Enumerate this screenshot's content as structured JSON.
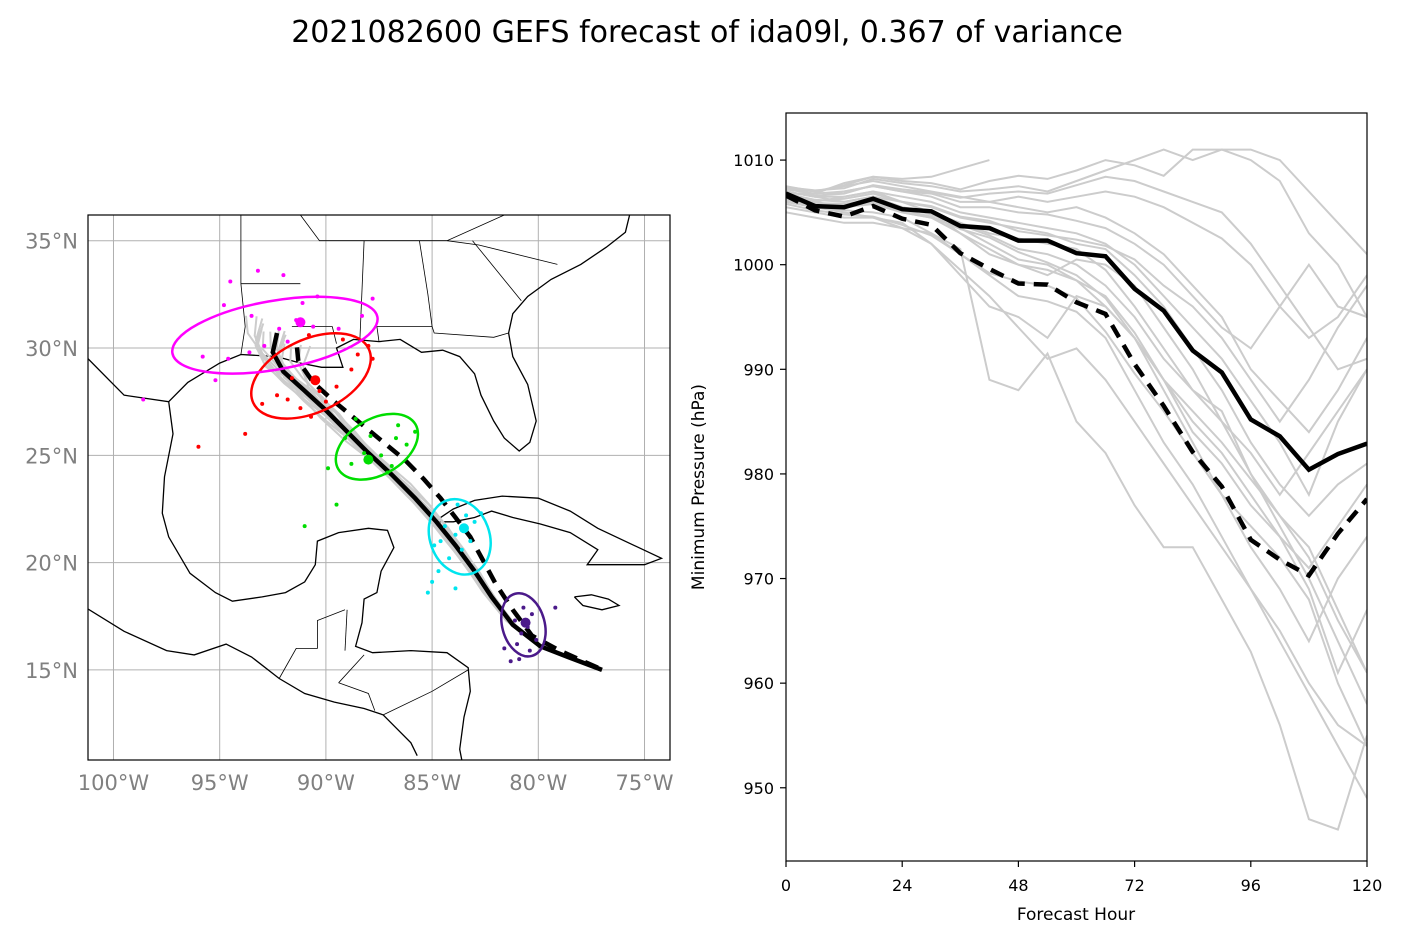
{
  "figure": {
    "title": "2021082600 GEFS forecast of ida09l, 0.367 of variance"
  },
  "colors": {
    "ensemble_member": "#cccccc",
    "mean_track": "#000000",
    "ellipse_24h": "#4b1a8a",
    "ellipse_48h": "#00e5ee",
    "ellipse_72h": "#00dd00",
    "ellipse_96h": "#ff0000",
    "ellipse_120h": "#ff00ff",
    "coastline": "#000000",
    "grid": "#b0b0b0"
  },
  "chart_data": [
    {
      "type": "scatter",
      "panel": "track-map",
      "projection": "PlateCarree",
      "xlim": [
        -101.2,
        -73.8
      ],
      "ylim": [
        10.8,
        36.2
      ],
      "xticks": [
        -100,
        -95,
        -90,
        -85,
        -80,
        -75
      ],
      "yticks": [
        15,
        20,
        25,
        30,
        35
      ],
      "xtick_labels": [
        "100°W",
        "95°W",
        "90°W",
        "85°W",
        "80°W",
        "75°W"
      ],
      "ytick_labels": [
        "15°N",
        "20°N",
        "25°N",
        "30°N",
        "35°N"
      ],
      "grid": true,
      "mean_track": {
        "lon": [
          -77.0,
          -78.6,
          -79.9,
          -81.2,
          -82.2,
          -83.0,
          -83.9,
          -84.8,
          -85.8,
          -86.9,
          -88.1,
          -89.1,
          -90.0,
          -91.0,
          -92.0,
          -92.5,
          -92.3
        ],
        "lat": [
          15.0,
          15.6,
          16.1,
          17.1,
          18.4,
          19.6,
          20.8,
          21.9,
          23.0,
          24.1,
          25.2,
          26.2,
          27.1,
          28.0,
          28.9,
          29.8,
          30.7
        ]
      },
      "alt_track": {
        "lon": [
          -77.2,
          -79.0,
          -80.3,
          -81.2,
          -82.0,
          -82.6,
          -83.2,
          -83.9,
          -84.6,
          -85.4,
          -86.3,
          -87.4,
          -88.5,
          -89.6,
          -90.6,
          -91.3,
          -91.4
        ],
        "lat": [
          15.1,
          15.9,
          16.6,
          17.8,
          19.0,
          20.1,
          21.2,
          22.1,
          23.0,
          23.9,
          24.8,
          25.7,
          26.6,
          27.5,
          28.4,
          29.4,
          30.4
        ]
      },
      "ellipses": [
        {
          "name": "24h",
          "lon": -80.7,
          "lat": 17.1,
          "rx": 1.0,
          "ry": 1.5,
          "angle": -15
        },
        {
          "name": "48h",
          "lon": -83.7,
          "lat": 21.2,
          "rx": 1.4,
          "ry": 1.8,
          "angle": -20
        },
        {
          "name": "72h",
          "lon": -87.6,
          "lat": 25.4,
          "rx": 2.1,
          "ry": 1.3,
          "angle": -30
        },
        {
          "name": "96h",
          "lon": -90.7,
          "lat": 28.7,
          "rx": 3.0,
          "ry": 1.7,
          "angle": -25
        },
        {
          "name": "120h",
          "lon": -92.4,
          "lat": 30.6,
          "rx": 4.9,
          "ry": 1.6,
          "angle": -10
        }
      ],
      "centers": [
        {
          "name": "24h",
          "lon": -80.6,
          "lat": 17.2
        },
        {
          "name": "48h",
          "lon": -83.5,
          "lat": 21.6
        },
        {
          "name": "72h",
          "lon": -88.0,
          "lat": 24.8
        },
        {
          "name": "96h",
          "lon": -90.5,
          "lat": 28.5
        },
        {
          "name": "120h",
          "lon": -91.2,
          "lat": 31.2
        }
      ],
      "members_24h": [
        [
          -81.3,
          15.4
        ],
        [
          -80.9,
          15.5
        ],
        [
          -80.4,
          15.9
        ],
        [
          -81.6,
          16.0
        ],
        [
          -80.1,
          16.4
        ],
        [
          -80.8,
          16.7
        ],
        [
          -81.1,
          17.3
        ],
        [
          -80.3,
          17.6
        ],
        [
          -80.7,
          17.9
        ],
        [
          -79.2,
          17.9
        ],
        [
          -81.0,
          16.2
        ],
        [
          -80.5,
          17.0
        ]
      ],
      "members_48h": [
        [
          -85.2,
          18.6
        ],
        [
          -85.0,
          19.1
        ],
        [
          -84.7,
          19.6
        ],
        [
          -83.9,
          18.8
        ],
        [
          -84.2,
          20.2
        ],
        [
          -83.6,
          20.6
        ],
        [
          -84.9,
          20.8
        ],
        [
          -83.2,
          21.0
        ],
        [
          -83.9,
          21.3
        ],
        [
          -84.4,
          21.7
        ],
        [
          -83.4,
          22.2
        ],
        [
          -83.8,
          22.7
        ],
        [
          -83.0,
          21.9
        ],
        [
          -82.7,
          22.3
        ],
        [
          -84.6,
          21.0
        ]
      ],
      "members_72h": [
        [
          -91.0,
          21.7
        ],
        [
          -89.5,
          22.7
        ],
        [
          -89.9,
          24.4
        ],
        [
          -88.8,
          24.6
        ],
        [
          -89.1,
          25.8
        ],
        [
          -88.2,
          25.1
        ],
        [
          -87.9,
          25.9
        ],
        [
          -87.4,
          25.0
        ],
        [
          -86.9,
          24.5
        ],
        [
          -86.7,
          25.8
        ],
        [
          -86.2,
          25.5
        ],
        [
          -85.8,
          26.1
        ],
        [
          -86.6,
          26.4
        ],
        [
          -88.6,
          26.7
        ],
        [
          -87.1,
          24.2
        ]
      ],
      "members_96h": [
        [
          -96.0,
          25.4
        ],
        [
          -93.8,
          26.0
        ],
        [
          -93.0,
          27.4
        ],
        [
          -92.3,
          27.8
        ],
        [
          -91.8,
          27.6
        ],
        [
          -91.2,
          27.2
        ],
        [
          -90.7,
          26.8
        ],
        [
          -90.0,
          27.5
        ],
        [
          -89.5,
          28.2
        ],
        [
          -88.8,
          29.0
        ],
        [
          -88.5,
          29.7
        ],
        [
          -88.0,
          30.1
        ],
        [
          -89.2,
          30.4
        ],
        [
          -90.8,
          30.6
        ],
        [
          -91.6,
          28.6
        ],
        [
          -90.3,
          28.0
        ],
        [
          -87.8,
          29.5
        ]
      ],
      "members_120h": [
        [
          -98.6,
          27.6
        ],
        [
          -95.2,
          28.5
        ],
        [
          -94.6,
          29.5
        ],
        [
          -95.8,
          29.6
        ],
        [
          -93.6,
          29.8
        ],
        [
          -92.9,
          30.1
        ],
        [
          -92.2,
          30.9
        ],
        [
          -91.4,
          31.3
        ],
        [
          -90.6,
          31.0
        ],
        [
          -91.1,
          32.1
        ],
        [
          -92.0,
          33.4
        ],
        [
          -93.2,
          33.6
        ],
        [
          -94.5,
          33.1
        ],
        [
          -94.8,
          32.0
        ],
        [
          -93.5,
          31.5
        ],
        [
          -90.4,
          32.4
        ],
        [
          -89.4,
          30.9
        ],
        [
          -88.3,
          31.5
        ],
        [
          -87.8,
          32.3
        ],
        [
          -91.8,
          30.3
        ]
      ]
    },
    {
      "type": "line",
      "panel": "pressure",
      "xlabel": "Forecast Hour",
      "ylabel": "Minimum Pressure (hPa)",
      "xlim": [
        0,
        120
      ],
      "ylim": [
        943,
        1014.5
      ],
      "xticks": [
        0,
        24,
        48,
        72,
        96,
        120
      ],
      "yticks": [
        950,
        960,
        970,
        980,
        990,
        1000,
        1010
      ],
      "grid": false,
      "mean": {
        "x": [
          0,
          6,
          12,
          18,
          24,
          30,
          36,
          42,
          48,
          54,
          60,
          66,
          72,
          78,
          84,
          90,
          96,
          102,
          108,
          114,
          120
        ],
        "y": [
          1006.8,
          1005.6,
          1005.5,
          1006.3,
          1005.3,
          1005.1,
          1003.7,
          1003.5,
          1002.3,
          1002.3,
          1001.1,
          1000.8,
          997.7,
          995.6,
          991.8,
          989.7,
          985.2,
          983.6,
          980.4,
          981.9,
          982.9
        ]
      },
      "alt": {
        "x": [
          0,
          6,
          12,
          18,
          24,
          30,
          36,
          42,
          48,
          54,
          60,
          66,
          72,
          78,
          84,
          90,
          96,
          102,
          108,
          114,
          120
        ],
        "y": [
          1006.6,
          1005.2,
          1004.6,
          1005.6,
          1004.4,
          1003.8,
          1001.1,
          999.6,
          998.2,
          998.1,
          996.4,
          995.3,
          990.5,
          986.5,
          982.1,
          978.8,
          973.7,
          971.8,
          970.3,
          974.3,
          977.6
        ]
      },
      "members": [
        [
          1006.0,
          1005.5,
          1005.2,
          1005.0,
          1004.5,
          1003.0,
          1001.0,
          999.0,
          997.0,
          996.5,
          995.5,
          993.0,
          988.0,
          983.0,
          979.0,
          974.0,
          969.0,
          964.0,
          959.0,
          954.0,
          949.0
        ],
        [
          1007.0,
          1006.5,
          1006.0,
          1006.5,
          1006.0,
          1005.5,
          1004.5,
          1004.0,
          1003.5,
          1003.0,
          1002.0,
          1001.5,
          999.0,
          996.0,
          992.0,
          988.0,
          983.0,
          979.0,
          976.0,
          979.0,
          981.0
        ],
        [
          1005.5,
          1005.0,
          1004.5,
          1004.5,
          1003.5,
          1002.0,
          999.5,
          997.0,
          994.0,
          991.0,
          992.0,
          989.0,
          985.0,
          981.0,
          977.0,
          973.0,
          969.0,
          965.0,
          960.0,
          956.0,
          954.0
        ],
        [
          1007.5,
          1007.0,
          1007.5,
          1008.0,
          1007.5,
          1007.0,
          1006.5,
          1006.0,
          1006.5,
          1006.0,
          1006.5,
          1007.0,
          1006.5,
          1005.5,
          1004.0,
          1002.5,
          1000.0,
          996.0,
          993.0,
          995.0,
          999.0
        ],
        [
          1006.5,
          1006.0,
          1006.5,
          1007.0,
          1006.0,
          1005.0,
          1003.0,
          1001.0,
          1000.0,
          999.0,
          1000.5,
          1000.0,
          998.0,
          994.0,
          990.0,
          985.0,
          980.0,
          976.0,
          972.0,
          966.0,
          961.0
        ],
        [
          1005.0,
          1004.5,
          1004.0,
          1004.0,
          1003.5,
          1003.0,
          1001.5,
          989.0,
          988.0,
          991.5,
          985.0,
          982.0,
          977.0,
          973.0,
          973.0,
          968.0,
          963.0,
          956.0,
          947.0,
          946.0,
          955.0
        ],
        [
          1006.0,
          1005.5,
          1005.0,
          1004.5,
          1004.0,
          1002.0,
          999.0,
          996.0,
          995.0,
          993.0,
          997.0,
          996.0,
          993.0,
          988.0,
          983.0,
          978.0,
          975.0,
          972.0,
          968.0,
          960.0,
          954.0
        ],
        [
          1007.0,
          1006.5,
          1006.5,
          1007.0,
          1006.5,
          1006.0,
          1005.0,
          1004.5,
          1004.0,
          1003.5,
          1003.0,
          1002.0,
          1000.0,
          997.0,
          994.0,
          991.0,
          987.0,
          983.0,
          978.0,
          985.0,
          990.0
        ],
        [
          1006.8,
          1006.2,
          1006.0,
          1006.5,
          1005.5,
          1005.0,
          1004.0,
          1003.0,
          1002.5,
          1002.0,
          1001.5,
          999.5,
          996.0,
          992.0,
          988.0,
          986.0,
          980.0,
          975.0,
          970.0,
          964.0,
          958.0
        ],
        [
          1006.0,
          1005.8,
          1005.5,
          1005.8,
          1005.0,
          1004.5,
          1003.5,
          1002.0,
          1000.5,
          1000.0,
          998.5,
          996.0,
          993.0,
          989.0,
          984.0,
          981.0,
          977.0,
          974.0,
          969.0,
          961.0,
          967.0
        ],
        [
          1007.2,
          1006.8,
          1007.0,
          1007.5,
          1007.0,
          1006.8,
          1006.0,
          1006.0,
          1005.5,
          1005.0,
          1005.5,
          1004.5,
          1003.0,
          1001.0,
          998.0,
          995.0,
          990.0,
          987.0,
          984.0,
          988.0,
          993.0
        ],
        [
          1006.3,
          1005.9,
          1005.8,
          1006.2,
          1005.5,
          1004.8,
          1003.8,
          1002.8,
          1001.5,
          1001.0,
          1000.0,
          998.0,
          995.0,
          991.0,
          988.0,
          985.0,
          982.0,
          978.0,
          982.0,
          986.0,
          990.0
        ],
        [
          1006.5,
          1006.0,
          1005.5,
          1006.0,
          1005.0,
          1004.5,
          1003.0,
          1001.5,
          1000.0,
          999.5,
          998.5,
          997.0,
          993.5,
          989.0,
          985.0,
          982.0,
          978.0,
          974.0,
          971.0,
          975.0,
          979.0
        ],
        [
          1007.0,
          1006.5,
          1007.0,
          1007.5,
          1007.0,
          1006.5,
          1005.5,
          1005.5,
          1005.0,
          1004.8,
          1004.2,
          1003.5,
          1002.0,
          1000.0,
          997.0,
          994.0,
          992.0,
          996.0,
          1000.0,
          996.0,
          995.0
        ],
        [
          1006.2,
          1005.8,
          1005.6,
          1006.0,
          1005.2,
          1004.6,
          1003.4,
          1002.6,
          1001.2,
          1000.2,
          999.0,
          996.8,
          993.0,
          989.0,
          986.0,
          983.0,
          979.5,
          976.0,
          973.0,
          967.0,
          961.0
        ],
        [
          1007.4,
          1007.1,
          1007.3,
          1008.2,
          1007.8,
          1007.5,
          1007.0,
          1007.2,
          1007.5,
          1007.0,
          1008.0,
          1009.0,
          1010.0,
          1011.0,
          1010.0,
          1011.0,
          1010.0,
          1008.0,
          1003.0,
          1000.0,
          995.0
        ],
        [
          1006.6,
          1006.1,
          1006.3,
          1006.8,
          1006.0,
          1005.6,
          1004.6,
          1004.2,
          1003.2,
          1002.8,
          1002.4,
          1001.8,
          1000.5,
          998.0,
          996.0,
          993.0,
          989.0,
          985.0,
          989.0,
          994.0,
          998.0
        ],
        [
          1007.3,
          1007.0,
          1007.6,
          1008.4,
          1008.0,
          1007.8,
          1007.2,
          1008.0,
          1008.5,
          1008.2,
          1009.0,
          1010.0,
          1009.5,
          1008.5,
          1011.0,
          1011.0,
          1011.0,
          1010.0,
          1007.0,
          1004.0,
          1001.0
        ],
        [
          1006.9,
          1006.6,
          1006.8,
          1007.6,
          1007.2,
          1006.9,
          1006.4,
          1006.8,
          1007.0,
          1006.8,
          1007.6,
          1008.4,
          1008.0,
          1007.0,
          1006.0,
          1005.0,
          1002.0,
          998.0,
          994.0,
          990.0,
          991.0
        ],
        [
          1005.8,
          1005.2,
          1004.8,
          1004.6,
          1003.8,
          1002.8,
          1001.0,
          999.2,
          998.4,
          998.0,
          996.8,
          993.6,
          989.6,
          986.0,
          982.0,
          978.0,
          973.0,
          969.0,
          964.0,
          970.0,
          974.0
        ]
      ],
      "short_member": {
        "x": [
          0,
          6,
          12,
          18,
          24,
          30,
          36,
          42
        ],
        "y": [
          1006.8,
          1006.8,
          1007.8,
          1008.4,
          1008.2,
          1008.4,
          1009.2,
          1010.0
        ]
      }
    }
  ]
}
